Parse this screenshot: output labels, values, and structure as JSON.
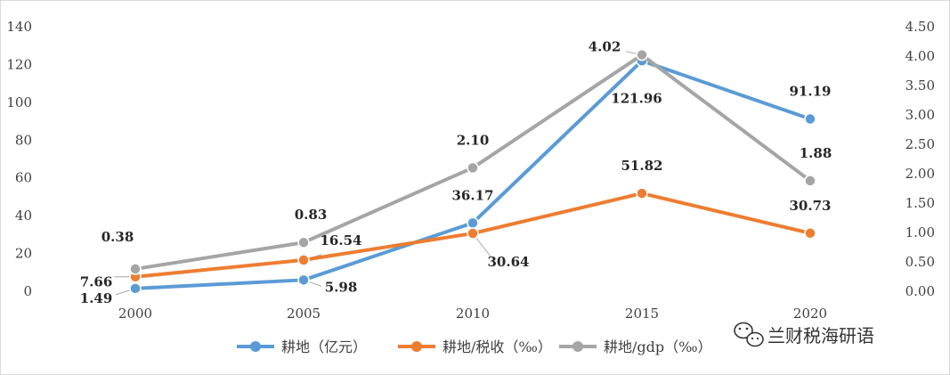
{
  "chart_data": {
    "type": "line",
    "categories": [
      "2000",
      "2005",
      "2010",
      "2015",
      "2020"
    ],
    "series": [
      {
        "name": "耕地（亿元）",
        "axis": "left",
        "color": "#5b9bd5",
        "values": [
          1.49,
          5.98,
          36.17,
          121.96,
          91.19
        ],
        "labels": [
          "1.49",
          "5.98",
          "36.17",
          "121.96",
          "91.19"
        ]
      },
      {
        "name": "耕地/税收（‰）",
        "axis": "left",
        "color": "#ed7d31",
        "values": [
          7.66,
          16.54,
          30.64,
          51.82,
          30.73
        ],
        "labels": [
          "7.66",
          "16.54",
          "30.64",
          "51.82",
          "30.73"
        ]
      },
      {
        "name": "耕地/gdp（‰）",
        "axis": "right",
        "color": "#a5a5a5",
        "values": [
          0.38,
          0.83,
          2.1,
          4.02,
          1.88
        ],
        "labels": [
          "0.38",
          "0.83",
          "2.10",
          "4.02",
          "1.88"
        ]
      }
    ],
    "ylim_left": [
      0,
      140
    ],
    "yticks_left": [
      "0",
      "20",
      "40",
      "60",
      "80",
      "100",
      "120",
      "140"
    ],
    "ylim_right": [
      0,
      4.5
    ],
    "yticks_right": [
      "0.00",
      "0.50",
      "1.00",
      "1.50",
      "2.00",
      "2.50",
      "3.00",
      "3.50",
      "4.00",
      "4.50"
    ],
    "grid": false,
    "legend_position": "bottom",
    "title": "",
    "xlabel": "",
    "ylabel": ""
  },
  "watermark": {
    "text": "兰财税海研语",
    "icon": "wechat-icon"
  }
}
